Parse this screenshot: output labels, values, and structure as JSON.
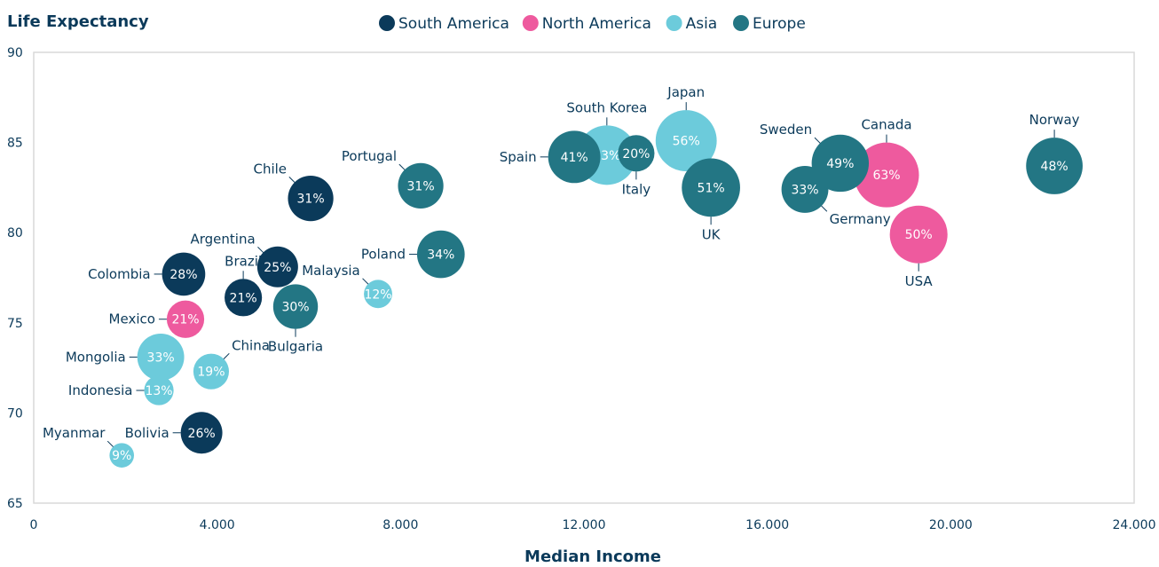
{
  "chart_data": {
    "type": "bubble",
    "xlabel": "Median Income",
    "ylabel": "Life Expectancy",
    "xlim": [
      0,
      24000
    ],
    "ylim": [
      65,
      90
    ],
    "xticks": [
      0,
      4000,
      8000,
      12000,
      16000,
      20000,
      24000
    ],
    "xtick_labels": [
      "0",
      "4.000",
      "8.000",
      "12.000",
      "16.000",
      "20.000",
      "24.000"
    ],
    "yticks": [
      65,
      70,
      75,
      80,
      85,
      90
    ],
    "grid": false,
    "legend_position": "top",
    "series": [
      {
        "name": "South America",
        "color": "#0b3a5a",
        "points": [
          {
            "label": "Chile",
            "x": 6040,
            "y": 81.9,
            "size": "31%",
            "pos": "top-left"
          },
          {
            "label": "Argentina",
            "x": 5320,
            "y": 78.1,
            "size": "25%",
            "pos": "top-left"
          },
          {
            "label": "Brazil",
            "x": 4570,
            "y": 76.4,
            "size": "21%",
            "pos": "top"
          },
          {
            "label": "Colombia",
            "x": 3270,
            "y": 77.7,
            "size": "28%",
            "pos": "left"
          },
          {
            "label": "Bolivia",
            "x": 3660,
            "y": 68.9,
            "size": "26%",
            "pos": "left"
          }
        ]
      },
      {
        "name": "North America",
        "color": "#ee5a9e",
        "points": [
          {
            "label": "Mexico",
            "x": 3310,
            "y": 75.2,
            "size": "21%",
            "pos": "left"
          },
          {
            "label": "Canada",
            "x": 18600,
            "y": 83.2,
            "size": "63%",
            "pos": "top"
          },
          {
            "label": "USA",
            "x": 19300,
            "y": 79.9,
            "size": "50%",
            "pos": "bottom"
          }
        ]
      },
      {
        "name": "Asia",
        "color": "#6ccbdb",
        "points": [
          {
            "label": "Mongolia",
            "x": 2770,
            "y": 73.1,
            "size": "33%",
            "pos": "left"
          },
          {
            "label": "Indonesia",
            "x": 2730,
            "y": 71.25,
            "size": "13%",
            "pos": "left"
          },
          {
            "label": "China",
            "x": 3870,
            "y": 72.3,
            "size": "19%",
            "pos": "top-right"
          },
          {
            "label": "Myanmar",
            "x": 1920,
            "y": 67.65,
            "size": "9%",
            "pos": "top-left"
          },
          {
            "label": "Malaysia",
            "x": 7510,
            "y": 76.6,
            "size": "12%",
            "pos": "top-left"
          },
          {
            "label": "South Korea",
            "x": 12500,
            "y": 84.3,
            "size": "53%",
            "pos": "top"
          },
          {
            "label": "Japan",
            "x": 14230,
            "y": 85.1,
            "size": "56%",
            "pos": "top"
          }
        ]
      },
      {
        "name": "Europe",
        "color": "#237684",
        "points": [
          {
            "label": "Portugal",
            "x": 8440,
            "y": 82.6,
            "size": "31%",
            "pos": "top-left"
          },
          {
            "label": "Bulgaria",
            "x": 5710,
            "y": 75.9,
            "size": "30%",
            "pos": "bottom"
          },
          {
            "label": "Poland",
            "x": 8880,
            "y": 78.8,
            "size": "34%",
            "pos": "left"
          },
          {
            "label": "Spain",
            "x": 11790,
            "y": 84.2,
            "size": "41%",
            "pos": "left"
          },
          {
            "label": "Italy",
            "x": 13140,
            "y": 84.4,
            "size": "20%",
            "pos": "bottom"
          },
          {
            "label": "UK",
            "x": 14770,
            "y": 82.5,
            "size": "51%",
            "pos": "bottom"
          },
          {
            "label": "Germany",
            "x": 16820,
            "y": 82.4,
            "size": "33%",
            "pos": "bottom-right"
          },
          {
            "label": "Sweden",
            "x": 17590,
            "y": 83.85,
            "size": "49%",
            "pos": "top-left"
          },
          {
            "label": "Norway",
            "x": 22260,
            "y": 83.7,
            "size": "48%",
            "pos": "top"
          }
        ]
      }
    ]
  }
}
